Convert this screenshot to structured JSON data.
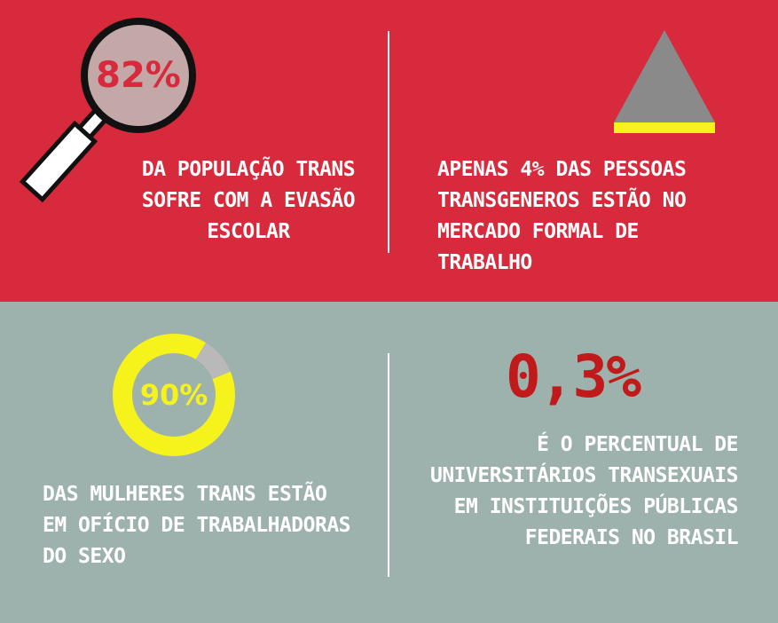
{
  "stat1": {
    "value": "82%",
    "caption": "DA POPULAÇÃO TRANS\nSOFRE COM A EVASÃO\nESCOLAR"
  },
  "stat2": {
    "caption": "APENAS 4% DAS PESSOAS\nTRANSGENEROS ESTÃO NO\nMERCADO FORMAL DE\nTRABALHO",
    "fill_fraction": 0.04
  },
  "stat3": {
    "value": "90%",
    "caption": "DAS MULHERES TRANS ESTÃO\nEM OFÍCIO DE TRABALHADORAS\nDO SEXO",
    "fill_fraction": 0.9
  },
  "stat4": {
    "value": "0,3%",
    "caption": "É O PERCENTUAL DE\nUNIVERSITÁRIOS TRANSEXUAIS\nEM INSTITUIÇÕES PÚBLICAS\nFEDERAIS NO BRASIL"
  },
  "colors": {
    "red": "#d72a3c",
    "gray_green": "#9eb2ad",
    "yellow": "#f5f21c",
    "gray": "#8a8a8a",
    "dark_red": "#c01a1a"
  },
  "icons": [
    "magnifying-glass-icon",
    "triangle-icon",
    "donut-chart-icon"
  ]
}
